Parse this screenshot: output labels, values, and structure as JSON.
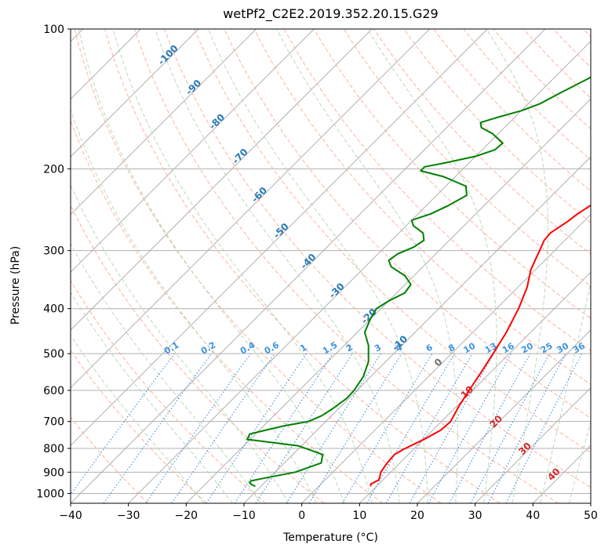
{
  "chart_data": {
    "type": "line",
    "title": "wetPf2_C2E2.2019.352.20.15.G29",
    "xlabel": "Temperature (°C)",
    "ylabel": "Pressure (hPa)",
    "xlim": [
      -40,
      50
    ],
    "ylim": [
      1050,
      100
    ],
    "y_scale": "log",
    "grid": true,
    "x_ticks": [
      "−40",
      "−30",
      "−20",
      "−10",
      "0",
      "10",
      "20",
      "30",
      "40",
      "50"
    ],
    "y_ticks": [
      "100",
      "200",
      "300",
      "400",
      "500",
      "600",
      "700",
      "800",
      "900",
      "1000"
    ],
    "skew_isotherms": true,
    "series": [
      {
        "color": "#ff0000",
        "points": [
          [
            9.0,
            965
          ],
          [
            8.6,
            955
          ],
          [
            9.3,
            935
          ],
          [
            8.3,
            900
          ],
          [
            7.8,
            860
          ],
          [
            7.6,
            825
          ],
          [
            8.2,
            805
          ],
          [
            10.3,
            760
          ],
          [
            11.4,
            730
          ],
          [
            11.6,
            700
          ],
          [
            10.4,
            650
          ],
          [
            9.4,
            600
          ],
          [
            8.4,
            550
          ],
          [
            7.2,
            500
          ],
          [
            5.8,
            450
          ],
          [
            3.8,
            400
          ],
          [
            1.6,
            360
          ],
          [
            -0.8,
            330
          ],
          [
            -2.6,
            300
          ],
          [
            -3.6,
            285
          ],
          [
            -3.8,
            275
          ],
          [
            -2.8,
            260
          ],
          [
            -2.4,
            250
          ],
          [
            -0.8,
            230
          ],
          [
            1.2,
            215
          ],
          [
            3.8,
            200
          ],
          [
            6.2,
            180
          ],
          [
            8.6,
            165
          ],
          [
            9.8,
            155
          ],
          [
            10.2,
            145
          ],
          [
            10.0,
            130
          ],
          [
            10.6,
            115
          ],
          [
            13.8,
            105
          ],
          [
            15.0,
            100
          ]
        ]
      },
      {
        "color": "#008000",
        "points": [
          [
            -11.0,
            965
          ],
          [
            -11.8,
            958
          ],
          [
            -12.5,
            950
          ],
          [
            -12.7,
            940
          ],
          [
            -11.3,
            930
          ],
          [
            -6.5,
            900
          ],
          [
            -3.6,
            860
          ],
          [
            -4.8,
            825
          ],
          [
            -10.5,
            790
          ],
          [
            -20.5,
            765
          ],
          [
            -21.0,
            745
          ],
          [
            -18.8,
            730
          ],
          [
            -16.4,
            715
          ],
          [
            -13.0,
            700
          ],
          [
            -11.7,
            680
          ],
          [
            -11.0,
            655
          ],
          [
            -10.4,
            625
          ],
          [
            -10.5,
            600
          ],
          [
            -11.3,
            560
          ],
          [
            -13.0,
            520
          ],
          [
            -15.8,
            480
          ],
          [
            -18.7,
            450
          ],
          [
            -20.1,
            420
          ],
          [
            -20.8,
            400
          ],
          [
            -20.0,
            385
          ],
          [
            -18.6,
            370
          ],
          [
            -19.0,
            355
          ],
          [
            -21.5,
            340
          ],
          [
            -25.5,
            325
          ],
          [
            -27.0,
            315
          ],
          [
            -26.6,
            305
          ],
          [
            -25.0,
            295
          ],
          [
            -24.4,
            285
          ],
          [
            -25.8,
            275
          ],
          [
            -28.8,
            265
          ],
          [
            -30.0,
            258
          ],
          [
            -27.8,
            250
          ],
          [
            -26.2,
            240
          ],
          [
            -24.8,
            228
          ],
          [
            -26.5,
            218
          ],
          [
            -32.0,
            208
          ],
          [
            -37.0,
            202
          ],
          [
            -37.0,
            198
          ],
          [
            -34.0,
            194
          ],
          [
            -30.0,
            188
          ],
          [
            -27.8,
            182
          ],
          [
            -27.6,
            176
          ],
          [
            -31.0,
            168
          ],
          [
            -34.0,
            163
          ],
          [
            -35.0,
            159
          ],
          [
            -33.0,
            155
          ],
          [
            -30.0,
            150
          ],
          [
            -28.0,
            145
          ],
          [
            -26.5,
            138
          ],
          [
            -24.0,
            128
          ],
          [
            -22.0,
            118
          ],
          [
            -20.3,
            110
          ],
          [
            -19.0,
            103
          ],
          [
            -18.4,
            100
          ]
        ]
      }
    ],
    "dry_adiabat_labels": [
      "-100",
      "-90",
      "-80",
      "-70",
      "-60",
      "-50",
      "-40",
      "-30",
      "-20",
      "-10"
    ],
    "mixing_ratio_labels": [
      "0.1",
      "0.2",
      "0.4",
      "0.6",
      "1",
      "1.5",
      "2",
      "3",
      "4",
      "6",
      "8",
      "10",
      "13",
      "16",
      "20",
      "25",
      "30",
      "36"
    ],
    "moist_adiabat_labels": [
      "0",
      "10",
      "20",
      "30",
      "40"
    ],
    "colors": {
      "isotherm": "#b0b0b0",
      "dry_adiabat": "#ffb19a",
      "moist_adiabat": "#b5dcb5",
      "mixing_ratio": "#3c8fdc",
      "dry_label": "#2878b5",
      "mixing_label": "#3c93e0",
      "moist_label_zero": "#707070",
      "moist_label": "#d62728",
      "wet_bulb_curve": "#e3ccb0"
    }
  }
}
